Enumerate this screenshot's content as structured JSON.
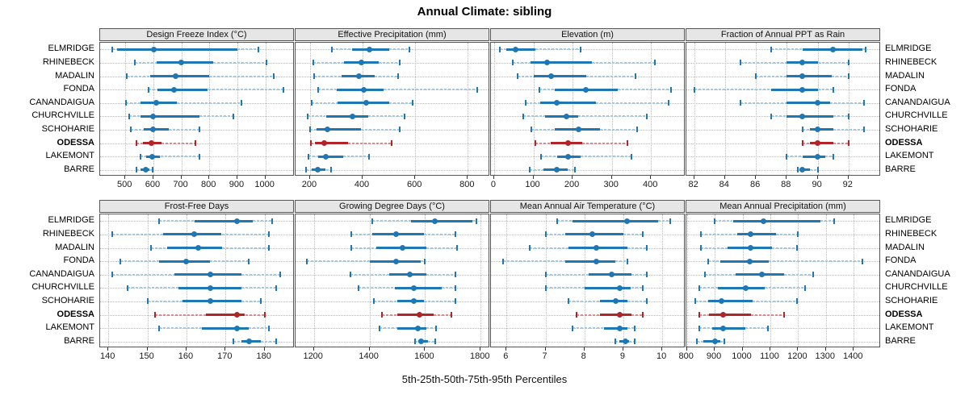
{
  "title": "Annual Climate: sibling",
  "caption": "5th-25th-50th-75th-95th Percentiles",
  "sites": [
    "ELMRIDGE",
    "RHINEBECK",
    "MADALIN",
    "FONDA",
    "CANANDAIGUA",
    "CHURCHVILLE",
    "SCHOHARIE",
    "ODESSA",
    "LAKEMONT",
    "BARRE"
  ],
  "highlight_site": "ODESSA",
  "colors": {
    "blue": "#1f77b4",
    "light_blue": "#a3c8e0",
    "red": "#b22428",
    "light_red": "#d98c8e",
    "grid": "#bbbbbb",
    "border": "#555555",
    "strip_bg": "#e6e6e6",
    "tick": "#333333"
  },
  "chart_data": {
    "type": "dotplot-interval",
    "note": "Each row shows 5th-25th-50th-75th-95th percentiles; thin light segment 5-25 and 75-95, thick segment 25-75, dot at median, end caps at 5th and 95th.",
    "percentiles": [
      5,
      25,
      50,
      75,
      95
    ],
    "legend_position": "none",
    "grid": "dotted at major x ticks and at each site row",
    "panels": [
      {
        "title": "Design Freeze Index (°C)",
        "row": 0,
        "col": 0,
        "xlim": [
          410,
          1105
        ],
        "ticks": [
          500,
          600,
          700,
          800,
          900,
          1000
        ],
        "values": [
          [
            453,
            471,
            603,
            899,
            974
          ],
          [
            535,
            612,
            700,
            815,
            1005
          ],
          [
            505,
            590,
            680,
            800,
            1030
          ],
          [
            583,
            615,
            675,
            795,
            1065
          ],
          [
            502,
            555,
            610,
            685,
            915
          ],
          [
            515,
            555,
            600,
            765,
            885
          ],
          [
            520,
            567,
            600,
            655,
            765
          ],
          [
            540,
            563,
            592,
            630,
            750
          ],
          [
            553,
            575,
            595,
            625,
            765
          ],
          [
            540,
            553,
            573,
            586,
            597
          ]
        ]
      },
      {
        "title": "Effective Precipitation (mm)",
        "row": 0,
        "col": 1,
        "xlim": [
          145,
          885
        ],
        "ticks": [
          200,
          400,
          600,
          800
        ],
        "values": [
          [
            282,
            360,
            425,
            500,
            577
          ],
          [
            212,
            330,
            395,
            460,
            540
          ],
          [
            215,
            320,
            385,
            445,
            535
          ],
          [
            230,
            300,
            405,
            480,
            835
          ],
          [
            205,
            305,
            415,
            500,
            590
          ],
          [
            190,
            260,
            360,
            420,
            560
          ],
          [
            200,
            225,
            265,
            395,
            540
          ],
          [
            202,
            220,
            255,
            345,
            510
          ],
          [
            195,
            230,
            260,
            325,
            425
          ],
          [
            185,
            205,
            230,
            260,
            280
          ]
        ]
      },
      {
        "title": "Elevation (m)",
        "row": 0,
        "col": 2,
        "xlim": [
          -8,
          488
        ],
        "ticks": [
          0,
          100,
          200,
          300,
          400
        ],
        "values": [
          [
            15,
            30,
            55,
            105,
            220
          ],
          [
            48,
            93,
            135,
            250,
            410
          ],
          [
            60,
            100,
            145,
            235,
            360
          ],
          [
            115,
            155,
            233,
            315,
            450
          ],
          [
            80,
            118,
            160,
            260,
            445
          ],
          [
            75,
            130,
            185,
            215,
            390
          ],
          [
            95,
            155,
            215,
            270,
            365
          ],
          [
            105,
            145,
            188,
            225,
            340
          ],
          [
            120,
            160,
            188,
            220,
            350
          ],
          [
            90,
            125,
            160,
            188,
            205
          ]
        ]
      },
      {
        "title": "Fraction of Annual PPT as Rain",
        "row": 0,
        "col": 3,
        "xlim": [
          81.5,
          94.1
        ],
        "ticks": [
          82,
          84,
          86,
          88,
          90,
          92
        ],
        "values": [
          [
            87,
            89,
            91,
            92.9,
            93.1
          ],
          [
            85,
            88,
            89,
            90,
            92
          ],
          [
            86,
            88,
            89,
            90.9,
            92
          ],
          [
            82,
            87,
            89,
            90,
            91
          ],
          [
            85,
            88,
            90,
            90.8,
            93
          ],
          [
            87,
            88,
            89,
            91,
            92
          ],
          [
            89,
            89.5,
            90,
            91,
            93
          ],
          [
            89,
            89.5,
            90,
            91,
            92
          ],
          [
            88,
            89,
            90,
            90.5,
            91
          ],
          [
            88.7,
            88.9,
            89,
            89.5,
            90
          ]
        ]
      },
      {
        "title": "Frost-Free Days",
        "row": 1,
        "col": 0,
        "xlim": [
          137.9,
          187.7
        ],
        "ticks": [
          140,
          150,
          160,
          170,
          180
        ],
        "values": [
          [
            153,
            162,
            173,
            177,
            182
          ],
          [
            141,
            154,
            162,
            169,
            181
          ],
          [
            151,
            155,
            163,
            169,
            181
          ],
          [
            143,
            153,
            160,
            166,
            176
          ],
          [
            141,
            157,
            166,
            174,
            184
          ],
          [
            145,
            158,
            166,
            174,
            183
          ],
          [
            150,
            159,
            166,
            174,
            179
          ],
          [
            152,
            165,
            173,
            175,
            180
          ],
          [
            153,
            164,
            173,
            176,
            181
          ],
          [
            172,
            174,
            176,
            179,
            183
          ]
        ]
      },
      {
        "title": "Growing Degree Days (°C)",
        "row": 1,
        "col": 1,
        "xlim": [
          1134,
          1834
        ],
        "ticks": [
          1200,
          1400,
          1600,
          1800
        ],
        "values": [
          [
            1410,
            1550,
            1635,
            1770,
            1785
          ],
          [
            1335,
            1410,
            1495,
            1595,
            1710
          ],
          [
            1335,
            1425,
            1520,
            1605,
            1715
          ],
          [
            1175,
            1400,
            1495,
            1585,
            1600
          ],
          [
            1330,
            1470,
            1545,
            1605,
            1710
          ],
          [
            1360,
            1490,
            1560,
            1660,
            1710
          ],
          [
            1415,
            1500,
            1560,
            1595,
            1710
          ],
          [
            1445,
            1500,
            1580,
            1630,
            1695
          ],
          [
            1435,
            1500,
            1575,
            1605,
            1640
          ],
          [
            1565,
            1575,
            1585,
            1610,
            1635
          ]
        ]
      },
      {
        "title": "Mean Annual Air Temperature (°C)",
        "row": 1,
        "col": 2,
        "xlim": [
          5.6,
          10.6
        ],
        "ticks": [
          6,
          7,
          8,
          9,
          10
        ],
        "values": [
          [
            7.3,
            7.7,
            9.1,
            9.9,
            10.2
          ],
          [
            7.0,
            7.5,
            8.2,
            9.0,
            9.5
          ],
          [
            6.6,
            7.6,
            8.3,
            9.1,
            9.6
          ],
          [
            5.9,
            7.5,
            8.3,
            8.8,
            9.1
          ],
          [
            7.0,
            8.1,
            8.7,
            9.2,
            9.6
          ],
          [
            7.0,
            8.0,
            8.9,
            9.2,
            9.5
          ],
          [
            7.6,
            8.4,
            8.8,
            9.1,
            9.6
          ],
          [
            7.8,
            8.4,
            8.9,
            9.2,
            9.5
          ],
          [
            7.7,
            8.5,
            8.9,
            9.1,
            9.3
          ],
          [
            8.8,
            8.9,
            9.05,
            9.15,
            9.3
          ]
        ]
      },
      {
        "title": "Mean Annual Precipitation (mm)",
        "row": 1,
        "col": 3,
        "xlim": [
          798,
          1498
        ],
        "ticks": [
          800,
          900,
          1000,
          1100,
          1200,
          1300,
          1400
        ],
        "values": [
          [
            900,
            965,
            1075,
            1280,
            1330
          ],
          [
            850,
            980,
            1030,
            1120,
            1200
          ],
          [
            850,
            945,
            1030,
            1105,
            1195
          ],
          [
            875,
            920,
            1025,
            1095,
            1430
          ],
          [
            865,
            975,
            1070,
            1150,
            1255
          ],
          [
            845,
            910,
            1010,
            1080,
            1225
          ],
          [
            830,
            875,
            925,
            1035,
            1195
          ],
          [
            845,
            880,
            930,
            1030,
            1150
          ],
          [
            845,
            890,
            930,
            1010,
            1090
          ],
          [
            835,
            860,
            900,
            920,
            935
          ]
        ]
      }
    ]
  }
}
